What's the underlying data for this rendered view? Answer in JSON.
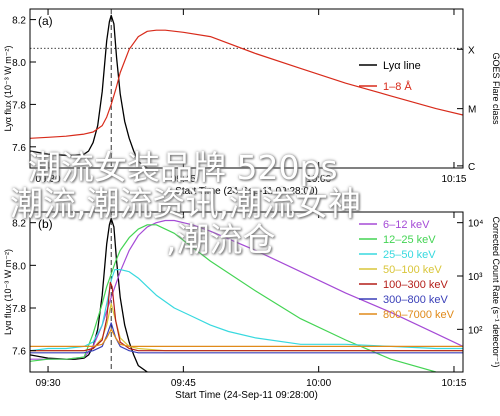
{
  "overlay_text": {
    "line1": "潮流女装品牌 520ps",
    "line2": "潮流,潮流资讯,潮流女神",
    "line3": ",潮流仓"
  },
  "colors": {
    "black": "#000000",
    "red": "#d82b1b",
    "purple": "#a54bd6",
    "green": "#44d454",
    "cyan": "#38d9df",
    "yellow": "#d9c63a",
    "darkred": "#b41e19",
    "blue": "#3a3fb8",
    "orange": "#e08a1a"
  },
  "chart_data": [
    {
      "type": "line",
      "panel_label": "(a)",
      "ylabel": "Lyα flux (10⁻³ W m⁻²)",
      "right_ylabel": "GOES Flare class",
      "xlabel": "Start Time (24-Sep-11 09:28:00)",
      "xlim": [
        0,
        48
      ],
      "ylim": [
        7.5,
        8.25
      ],
      "x_ticks": [
        {
          "x": 2,
          "label": "09:30"
        },
        {
          "x": 17,
          "label": "09:45"
        },
        {
          "x": 32,
          "label": "10:00"
        },
        {
          "x": 47,
          "label": "10:15"
        }
      ],
      "y_ticks": [
        7.6,
        7.8,
        8.0,
        8.2
      ],
      "y_tick_labels": [
        "7.6",
        "7.8",
        "8.0",
        "8.2"
      ],
      "right_ticks": [
        {
          "y": 7.51,
          "label": "C"
        },
        {
          "y": 7.78,
          "label": "M"
        },
        {
          "y": 8.06,
          "label": "X"
        }
      ],
      "dotted_hline": 8.065,
      "dashed_vline": 9.0,
      "legend": {
        "position": "top-right",
        "entries": [
          {
            "label": "Lyα line",
            "color": "#000000"
          },
          {
            "label": "1–8 Å",
            "color": "#d82b1b"
          }
        ]
      },
      "series": [
        {
          "name": "Lyα line",
          "color": "#000000",
          "x": [
            0,
            2,
            4,
            5,
            6,
            6.5,
            7,
            7.5,
            8,
            8.5,
            8.8,
            9.0,
            9.3,
            9.6,
            10,
            10.5,
            11,
            11.5,
            12,
            13,
            14
          ],
          "y": [
            7.58,
            7.565,
            7.56,
            7.56,
            7.565,
            7.58,
            7.62,
            7.7,
            7.86,
            8.1,
            8.19,
            8.22,
            8.18,
            8.02,
            7.85,
            7.72,
            7.64,
            7.58,
            7.53,
            7.5,
            7.49
          ]
        },
        {
          "name": "1–8 Å",
          "color": "#d82b1b",
          "x": [
            0,
            2,
            4,
            5,
            6,
            7,
            8,
            8.5,
            9,
            9.5,
            10,
            11,
            12,
            13,
            14,
            15,
            17,
            20,
            25,
            30,
            35,
            40,
            45,
            48
          ],
          "y": [
            7.64,
            7.645,
            7.65,
            7.655,
            7.66,
            7.67,
            7.7,
            7.74,
            7.8,
            7.87,
            7.95,
            8.06,
            8.12,
            8.145,
            8.15,
            8.15,
            8.14,
            8.12,
            8.04,
            7.97,
            7.9,
            7.84,
            7.78,
            7.75
          ]
        }
      ]
    },
    {
      "type": "line",
      "panel_label": "(b)",
      "ylabel": "Lyα flux (10⁻³ W m⁻²)",
      "right_ylabel": "Corrected Count Rate (s⁻¹ detector⁻¹)",
      "xlabel": "Start Time (24-Sep-11 09:28:00)",
      "xlim": [
        0,
        48
      ],
      "ylim": [
        7.5,
        8.25
      ],
      "x_ticks": [
        {
          "x": 2,
          "label": "09:30"
        },
        {
          "x": 17,
          "label": "09:45"
        },
        {
          "x": 32,
          "label": "10:00"
        },
        {
          "x": 47,
          "label": "10:15"
        }
      ],
      "y_ticks": [
        7.6,
        7.8,
        8.0,
        8.2
      ],
      "y_tick_labels": [
        "7.6",
        "7.8",
        "8.0",
        "8.2"
      ],
      "right_ticks": [
        {
          "y": 8.2,
          "label": "10⁴"
        },
        {
          "y": 7.95,
          "label": "10³"
        },
        {
          "y": 7.7,
          "label": "10²"
        }
      ],
      "dashed_vline": 9.0,
      "legend": {
        "position": "top-right",
        "entries": [
          {
            "label": "6–12 keV",
            "color": "#a54bd6"
          },
          {
            "label": "12–25 keV",
            "color": "#44d454"
          },
          {
            "label": "25–50 keV",
            "color": "#38d9df"
          },
          {
            "label": "50–100 keV",
            "color": "#d9c63a"
          },
          {
            "label": "100–300 keV",
            "color": "#b41e19"
          },
          {
            "label": "300–800 keV",
            "color": "#3a3fb8"
          },
          {
            "label": "800–7000 keV",
            "color": "#e08a1a"
          }
        ]
      },
      "series": [
        {
          "name": "Lyα line",
          "color": "#000000",
          "x": [
            0,
            2,
            4,
            5,
            6,
            6.5,
            7,
            7.5,
            8,
            8.5,
            8.8,
            9.0,
            9.3,
            9.6,
            10,
            10.5,
            11,
            11.5,
            12,
            13,
            14
          ],
          "y": [
            7.58,
            7.565,
            7.56,
            7.56,
            7.565,
            7.58,
            7.62,
            7.7,
            7.86,
            8.1,
            8.19,
            8.22,
            8.18,
            8.02,
            7.85,
            7.72,
            7.64,
            7.58,
            7.53,
            7.5,
            7.49
          ]
        },
        {
          "name": "6–12 keV",
          "color": "#a54bd6",
          "x": [
            0,
            2,
            4,
            6,
            7,
            8,
            9,
            10,
            11,
            12,
            13,
            14,
            15,
            16,
            17,
            18,
            20,
            25,
            30,
            35,
            40,
            45,
            48
          ],
          "y": [
            7.56,
            7.56,
            7.56,
            7.57,
            7.62,
            7.72,
            7.85,
            7.97,
            8.07,
            8.14,
            8.18,
            8.2,
            8.21,
            8.21,
            8.2,
            8.19,
            8.16,
            8.07,
            7.97,
            7.87,
            7.78,
            7.68,
            7.62
          ]
        },
        {
          "name": "12–25 keV",
          "color": "#44d454",
          "x": [
            0,
            2,
            4,
            6,
            7,
            8,
            8.5,
            9,
            9.5,
            10,
            11,
            12,
            13,
            14,
            16,
            20,
            25,
            30,
            35,
            40,
            45,
            48
          ],
          "y": [
            7.55,
            7.56,
            7.56,
            7.57,
            7.68,
            7.82,
            7.9,
            7.96,
            8.02,
            8.07,
            8.13,
            8.17,
            8.19,
            8.19,
            8.15,
            8.02,
            7.88,
            7.75,
            7.65,
            7.56,
            7.5,
            7.48
          ]
        },
        {
          "name": "25–50 keV",
          "color": "#38d9df",
          "x": [
            0,
            2,
            4,
            6,
            7,
            8,
            8.7,
            9,
            9.4,
            10,
            11,
            12,
            13,
            14,
            16,
            18,
            20,
            22,
            25,
            30,
            35,
            40,
            45,
            48
          ],
          "y": [
            7.6,
            7.61,
            7.61,
            7.62,
            7.64,
            7.72,
            7.86,
            7.93,
            7.98,
            7.98,
            7.97,
            7.94,
            7.9,
            7.86,
            7.8,
            7.76,
            7.72,
            7.69,
            7.66,
            7.63,
            7.63,
            7.62,
            7.61,
            7.61
          ]
        },
        {
          "name": "50–100 keV",
          "color": "#d9c63a",
          "x": [
            0,
            4,
            6,
            7,
            8,
            8.5,
            9,
            9.5,
            10,
            11,
            12,
            15,
            20,
            30,
            40,
            48
          ],
          "y": [
            7.6,
            7.6,
            7.6,
            7.61,
            7.66,
            7.72,
            7.82,
            7.74,
            7.66,
            7.62,
            7.61,
            7.6,
            7.6,
            7.6,
            7.6,
            7.6
          ]
        },
        {
          "name": "100–300 keV",
          "color": "#b41e19",
          "x": [
            0,
            4,
            6,
            7,
            8,
            8.5,
            8.9,
            9.1,
            9.5,
            10,
            11,
            12,
            15,
            20,
            30,
            40,
            48
          ],
          "y": [
            7.6,
            7.6,
            7.6,
            7.61,
            7.65,
            7.75,
            7.92,
            7.9,
            7.74,
            7.64,
            7.61,
            7.6,
            7.6,
            7.6,
            7.6,
            7.6,
            7.6
          ]
        },
        {
          "name": "300–800 keV",
          "color": "#3a3fb8",
          "x": [
            0,
            4,
            6,
            7,
            8,
            8.5,
            9,
            9.5,
            10,
            11,
            12,
            20,
            30,
            40,
            48
          ],
          "y": [
            7.59,
            7.59,
            7.59,
            7.6,
            7.62,
            7.67,
            7.73,
            7.66,
            7.62,
            7.6,
            7.59,
            7.59,
            7.59,
            7.59,
            7.59
          ]
        },
        {
          "name": "800–7000 keV",
          "color": "#e08a1a",
          "x": [
            0,
            4,
            6,
            7,
            8,
            8.5,
            9,
            9.5,
            10,
            11,
            12,
            20,
            30,
            40,
            48
          ],
          "y": [
            7.62,
            7.62,
            7.62,
            7.62,
            7.63,
            7.66,
            7.7,
            7.66,
            7.63,
            7.62,
            7.62,
            7.62,
            7.62,
            7.62,
            7.62
          ]
        }
      ]
    }
  ]
}
